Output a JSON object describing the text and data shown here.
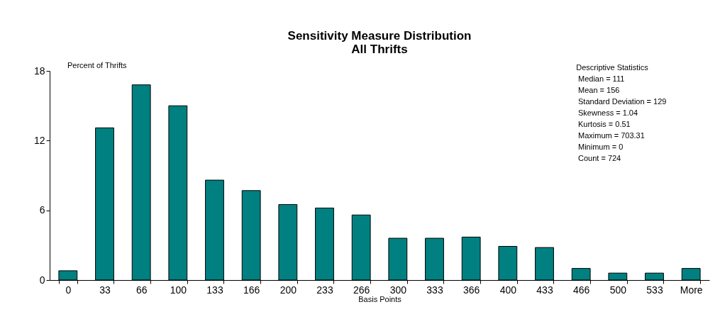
{
  "chart_data": {
    "type": "bar",
    "title": [
      "Sensitivity Measure Distribution",
      "All Thrifts"
    ],
    "ylabel": "Percent of Thrifts",
    "xlabel": "Basis Points",
    "categories": [
      "0",
      "33",
      "66",
      "100",
      "133",
      "166",
      "200",
      "233",
      "266",
      "300",
      "333",
      "366",
      "400",
      "433",
      "466",
      "500",
      "533",
      "More"
    ],
    "values": [
      0.8,
      13.1,
      16.8,
      15.0,
      8.6,
      7.7,
      6.5,
      6.2,
      5.6,
      3.6,
      3.6,
      3.7,
      2.9,
      2.8,
      1.0,
      0.6,
      0.6,
      1.0
    ],
    "color": "#008080",
    "ylim": [
      0,
      18
    ],
    "yticks": [
      0,
      6,
      12,
      18
    ],
    "grid": false,
    "annotations": [
      "Descriptive Statistics",
      "Median = 111",
      "Mean = 156",
      "Standard Deviation = 129",
      "Skewness = 1.04",
      "Kurtosis = 0.51",
      "Maximum = 703.31",
      "Minimum = 0",
      "Count = 724"
    ]
  }
}
